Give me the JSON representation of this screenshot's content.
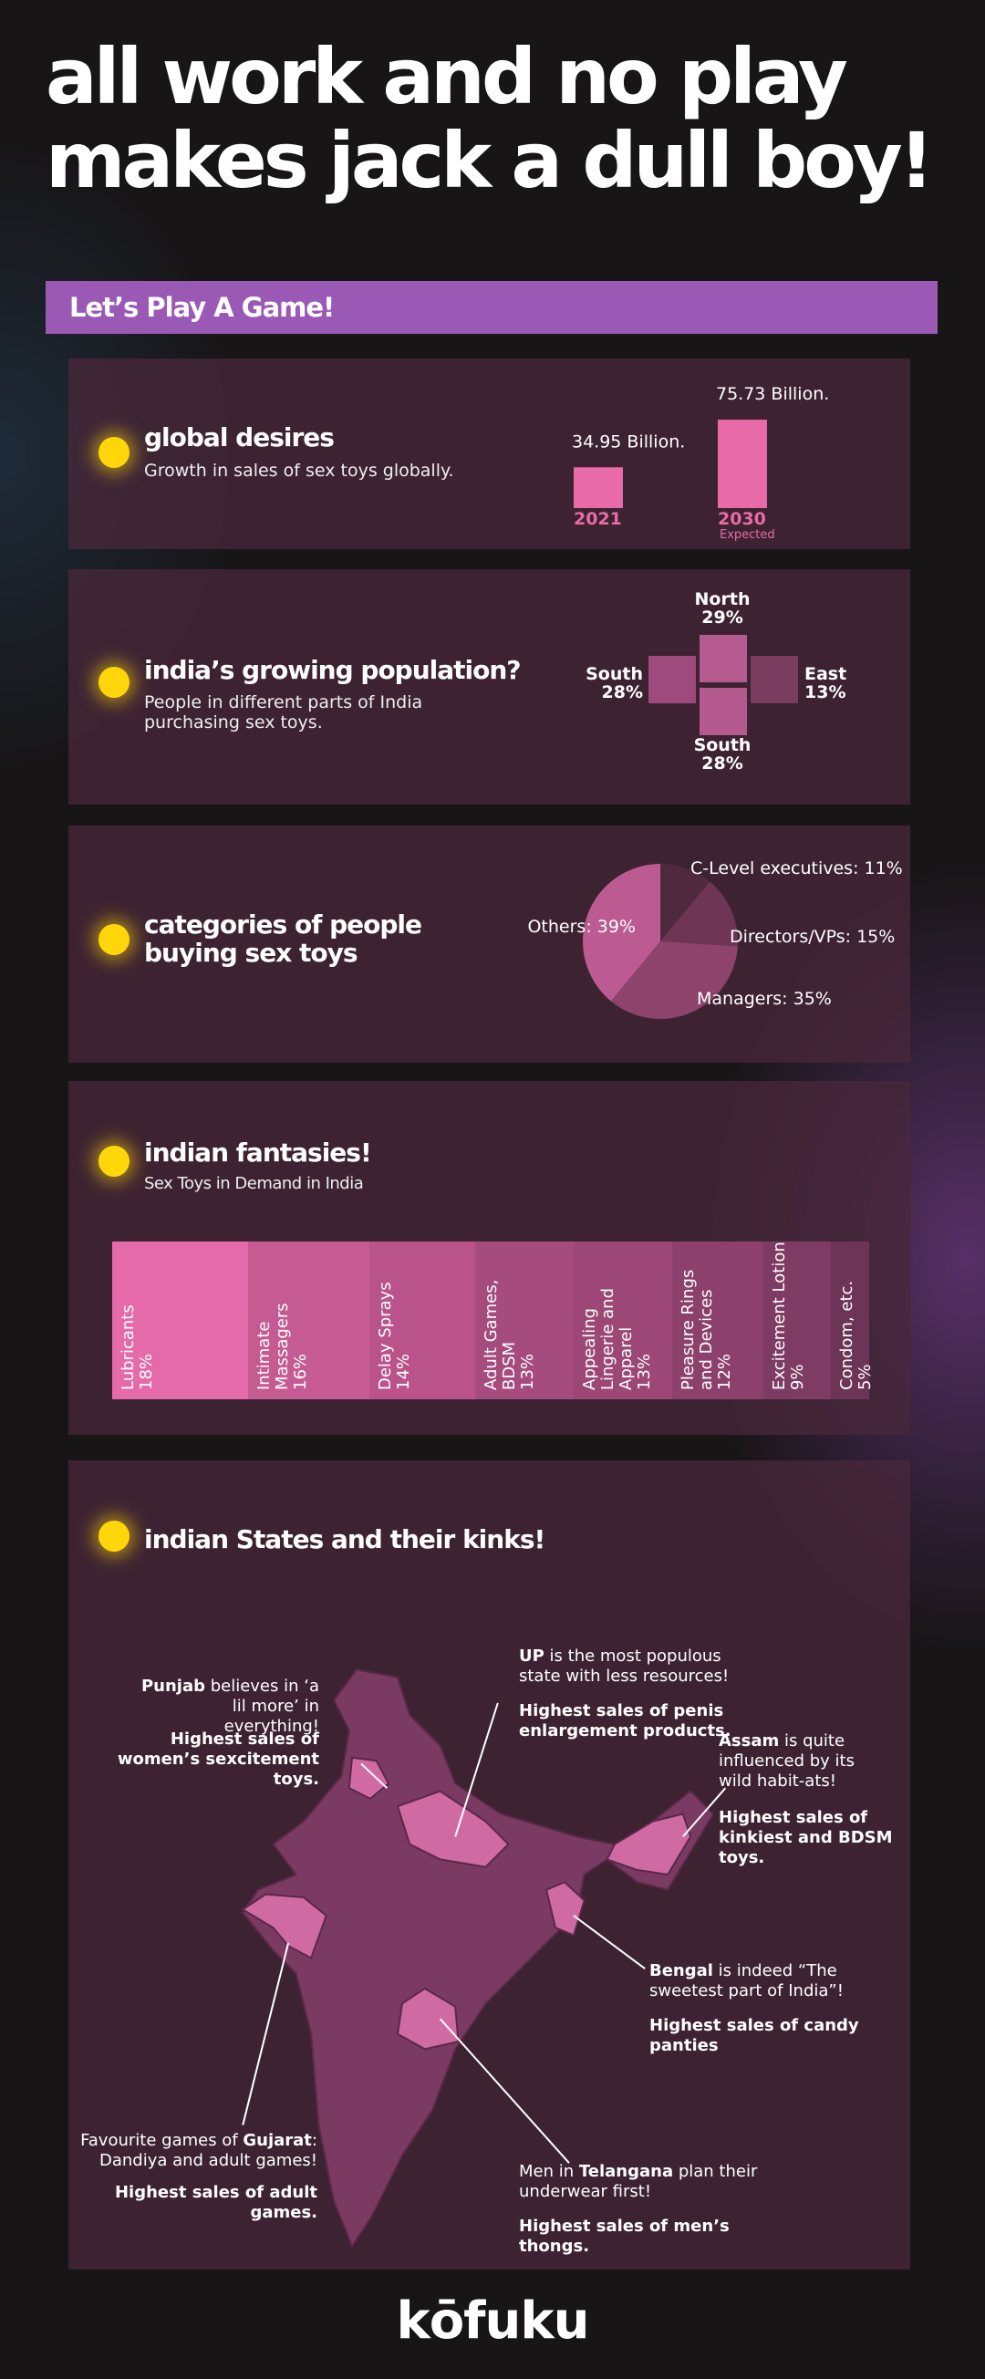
{
  "header": {
    "title_lines": [
      "all work and no play",
      "makes jack a dull boy!"
    ]
  },
  "banner": "Let’s Play A Game!",
  "sections": [
    {
      "title": "global desires",
      "subtitle": "Growth in sales of sex toys globally."
    },
    {
      "title": "india’s growing population?",
      "subtitle": "People in different parts of India purchasing sex toys."
    },
    {
      "title": "categories of people buying sex toys"
    },
    {
      "title": "indian fantasies!",
      "subtitle": "Sex Toys in Demand in India"
    },
    {
      "title": "indian States and their kinks!"
    }
  ],
  "chart_data": [
    {
      "type": "bar",
      "categories": [
        "2021",
        "2030"
      ],
      "values": [
        34.95,
        75.73
      ],
      "value_labels": [
        "34.95 Billion.",
        "75.73 Billion."
      ],
      "annotation": "Expected",
      "color": "#e86aa8"
    },
    {
      "type": "tile",
      "categories": [
        "North",
        "South",
        "East",
        "South"
      ],
      "values": [
        29,
        28,
        13,
        28
      ],
      "value_labels": [
        "29%",
        "28%",
        "13%",
        "28%"
      ],
      "colors": [
        "#b65b8f",
        "#9e4a7c",
        "#7b3d5f",
        "#b55a8e"
      ]
    },
    {
      "type": "pie",
      "values": [
        11,
        15,
        35,
        39
      ],
      "value_labels": [
        "C-Level executives: 11%",
        "Directors/VPs: 15%",
        "Managers: 35%",
        "Others: 39%"
      ],
      "colors": [
        "#4f2a3e",
        "#6e3555",
        "#8d436c",
        "#bb5b92"
      ]
    },
    {
      "type": "strip",
      "categories": [
        "Lubricants",
        "Intimate Massagers",
        "Delay Sprays",
        "Adult Games, BDSM",
        "Appealing Lingerie and Apparel",
        "Pleasure Rings and Devices",
        "Excitement Lotion",
        "Condom, etc."
      ],
      "values": [
        18,
        16,
        14,
        13,
        13,
        12,
        9,
        5
      ],
      "value_labels": [
        "18%",
        "16%",
        "14%",
        "13%",
        "13%",
        "12%",
        "9%",
        "5%"
      ],
      "colors": [
        "#e46aa9",
        "#c65a92",
        "#b9538a",
        "#a64b7d",
        "#9c4776",
        "#8c416c",
        "#7e3b63",
        "#6c3456"
      ]
    }
  ],
  "states": [
    {
      "parts": [
        {
          "text": "Punjab",
          "bold": true
        },
        {
          "text": " believes in ‘a lil more’ in everything!",
          "bold": false
        }
      ],
      "highlight": "Highest sales of women’s sexcitement toys."
    },
    {
      "parts": [
        {
          "text": "UP",
          "bold": true
        },
        {
          "text": " is the most populous state with less resources!",
          "bold": false
        }
      ],
      "highlight": "Highest sales of penis enlargement products."
    },
    {
      "parts": [
        {
          "text": "Assam",
          "bold": true
        },
        {
          "text": " is quite influenced by its wild habit-ats!",
          "bold": false
        }
      ],
      "highlight": "Highest sales of kinkiest and BDSM toys."
    },
    {
      "parts": [
        {
          "text": "Bengal",
          "bold": true
        },
        {
          "text": " is indeed “The sweetest part of India”!",
          "bold": false
        }
      ],
      "highlight": "Highest sales of candy panties"
    },
    {
      "parts": [
        {
          "text": "Favourite games of ",
          "bold": false
        },
        {
          "text": "Gujarat",
          "bold": true
        },
        {
          "text": ": Dandiya and adult games!",
          "bold": false
        }
      ],
      "highlight": "Highest sales of adult games."
    },
    {
      "parts": [
        {
          "text": "Men in ",
          "bold": false
        },
        {
          "text": "Telangana",
          "bold": true
        },
        {
          "text": " plan their underwear first!",
          "bold": false
        }
      ],
      "highlight": "Highest sales of men’s thongs."
    }
  ],
  "footer": {
    "logo": "kōfuku"
  }
}
